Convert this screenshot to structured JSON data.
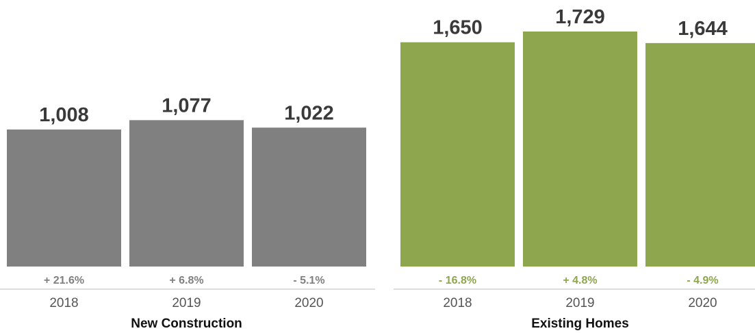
{
  "chart_data": {
    "type": "bar",
    "y_range": [
      0,
      1729
    ],
    "grid": false,
    "groups": [
      {
        "name": "New Construction",
        "color": "#808080",
        "change_color": "#808080",
        "bars": [
          {
            "year": "2018",
            "value": 1008,
            "value_label": "1,008",
            "change": "+ 21.6%"
          },
          {
            "year": "2019",
            "value": 1077,
            "value_label": "1,077",
            "change": "+ 6.8%"
          },
          {
            "year": "2020",
            "value": 1022,
            "value_label": "1,022",
            "change": "- 5.1%"
          }
        ]
      },
      {
        "name": "Existing Homes",
        "color": "#8ea64e",
        "change_color": "#8ea64e",
        "bars": [
          {
            "year": "2018",
            "value": 1650,
            "value_label": "1,650",
            "change": "- 16.8%"
          },
          {
            "year": "2019",
            "value": 1729,
            "value_label": "1,729",
            "change": "+ 4.8%"
          },
          {
            "year": "2020",
            "value": 1644,
            "value_label": "1,644",
            "change": "- 4.9%"
          }
        ]
      }
    ],
    "value_label_color": "#3a3a3a",
    "year_label_color": "#555555",
    "group_label_color": "#111111",
    "axis_line_color": "#bbbbbb"
  }
}
